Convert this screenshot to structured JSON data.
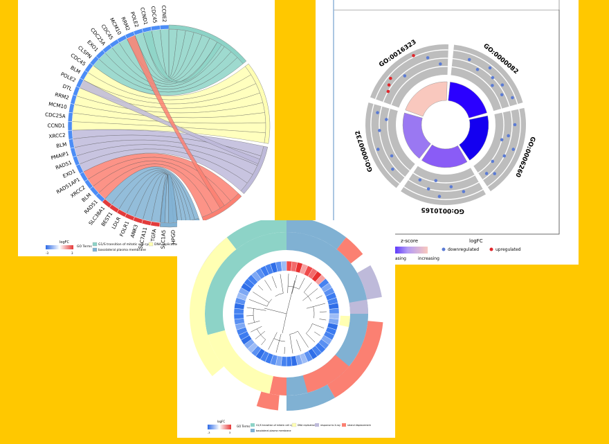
{
  "chart_data": [
    {
      "type": "chord",
      "genes": [
        "CCNE2",
        "CDC45",
        "CCND1",
        "POLE2",
        "RRM2",
        "MCM10",
        "CDC45",
        "CDC25A",
        "EXO1",
        "CLSPN",
        "CDC45",
        "BLM",
        "POLE2",
        "DTL",
        "RRM2",
        "MCM10",
        "CDC25A",
        "CCND1",
        "XRCC2",
        "BLM",
        "PMAIP1",
        "RAD51",
        "EXO1",
        "RAD51AP1",
        "XRCC2",
        "BLM",
        "RAD51",
        "SLC38A1",
        "BEST1",
        "LDLR",
        "FOLR1",
        "ANK3",
        "SLC7A11",
        "TGFA",
        "SLC1A5",
        "HPGD"
      ],
      "legend": {
        "logfc_title": "logFC",
        "logfc_min": "-3",
        "logfc_max": "3",
        "terms_title": "GO Terms",
        "terms": [
          {
            "label": "G1/S transition of mitotic cell cycle",
            "color": "#8DD3C7"
          },
          {
            "label": "DNA replication",
            "color": "#FFFFB3"
          },
          {
            "label": "basolateral plasma membrane",
            "color": "#80B1D3"
          }
        ]
      },
      "term_colors": [
        "#8DD3C7",
        "#FFFFB3",
        "#BEBADA",
        "#FB8072",
        "#80B1D3"
      ]
    },
    {
      "type": "circle",
      "sectors": [
        "GO:0000082",
        "GO:0006260",
        "GO:0010165",
        "GO:0000732",
        "GO:0016323"
      ],
      "zscore_colors": [
        "#2B00FF",
        "#1400F0",
        "#8A5CF6",
        "#9A78F2",
        "#F9C8BE"
      ],
      "legend": {
        "zscore_title": "z-score",
        "zscore_low": "decreasing",
        "zscore_high": "increasing",
        "logfc_title": "logFC",
        "down_label": "downregulated",
        "up_label": "upregulated",
        "down_color": "#5B7BD4",
        "up_color": "#E0262B"
      }
    },
    {
      "type": "cluster",
      "legend": {
        "logfc_title": "logFC",
        "logfc_min": "-3",
        "logfc_max": "3",
        "terms_title": "GO Terms",
        "terms": [
          {
            "label": "G1/S transition of mitotic cell cycle",
            "color": "#8DD3C7"
          },
          {
            "label": "DNA replication",
            "color": "#FFFFB3"
          },
          {
            "label": "response to X-ray",
            "color": "#BEBADA"
          },
          {
            "label": "strand displacement",
            "color": "#FB8072"
          },
          {
            "label": "basolateral plasma membrane",
            "color": "#80B1D3"
          }
        ]
      }
    }
  ]
}
